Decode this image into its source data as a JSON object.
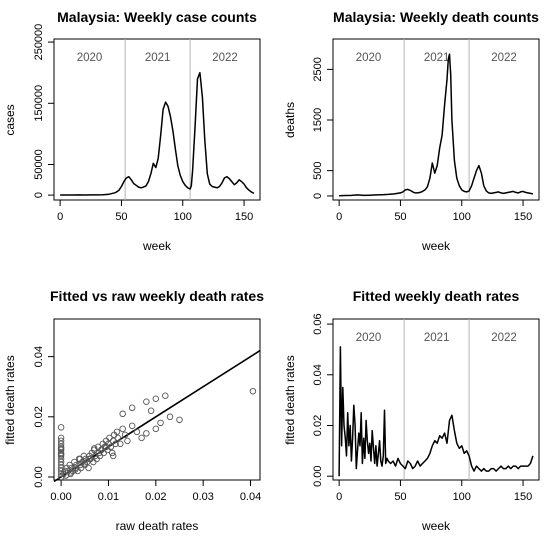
{
  "figure": {
    "background": "#ffffff",
    "line_color": "#000000",
    "divider_color": "#b4b4b4",
    "point_color": "#555555"
  },
  "chart_data": [
    {
      "type": "line",
      "title": "Malaysia: Weekly case counts",
      "xlabel": "week",
      "ylabel": "cases",
      "xlim": [
        -5,
        163
      ],
      "ylim": [
        -8000,
        255000
      ],
      "xticks": [
        "0",
        "50",
        "100",
        "150"
      ],
      "yticks": [
        "0",
        "50000",
        "150000",
        "250000"
      ],
      "year_dividers": [
        53,
        106
      ],
      "year_labels": [
        "2020",
        "2021",
        "2022"
      ],
      "series": [
        {
          "x": [
            0,
            5,
            10,
            15,
            20,
            25,
            30,
            35,
            40,
            45,
            48,
            50,
            52,
            54,
            56,
            58,
            60,
            62,
            64,
            66,
            68,
            70,
            72,
            74,
            76,
            78,
            80,
            82,
            84,
            86,
            88,
            90,
            92,
            94,
            96,
            98,
            100,
            102,
            104,
            106,
            107,
            108,
            110,
            112,
            114,
            116,
            118,
            120,
            122,
            124,
            126,
            128,
            130,
            132,
            134,
            136,
            138,
            140,
            142,
            144,
            146,
            148,
            150,
            152,
            154,
            156,
            158
          ],
          "y": [
            100,
            120,
            150,
            300,
            150,
            400,
            300,
            600,
            1500,
            4000,
            8000,
            14000,
            22000,
            28000,
            30000,
            25000,
            19000,
            16000,
            13000,
            12000,
            13000,
            15000,
            22000,
            35000,
            52000,
            45000,
            60000,
            98000,
            140000,
            152000,
            145000,
            128000,
            105000,
            75000,
            48000,
            32000,
            22000,
            16000,
            12000,
            10000,
            15000,
            40000,
            110000,
            190000,
            200000,
            160000,
            90000,
            35000,
            18000,
            14000,
            13000,
            12000,
            14000,
            20000,
            28000,
            30000,
            27000,
            22000,
            17000,
            20000,
            25000,
            22000,
            18000,
            12000,
            8000,
            5000,
            3000
          ]
        }
      ]
    },
    {
      "type": "line",
      "title": "Malaysia: Weekly death counts",
      "xlabel": "week",
      "ylabel": "deaths",
      "xlim": [
        -5,
        163
      ],
      "ylim": [
        -80,
        3100
      ],
      "xticks": [
        "0",
        "50",
        "100",
        "150"
      ],
      "yticks": [
        "0",
        "500",
        "1500",
        "2500"
      ],
      "year_dividers": [
        53,
        106
      ],
      "year_labels": [
        "2020",
        "2021",
        "2022"
      ],
      "series": [
        {
          "x": [
            0,
            5,
            10,
            15,
            20,
            25,
            30,
            35,
            40,
            45,
            50,
            52,
            54,
            56,
            58,
            60,
            62,
            64,
            66,
            68,
            70,
            72,
            74,
            76,
            78,
            80,
            82,
            84,
            86,
            88,
            89,
            90,
            91,
            92,
            94,
            96,
            98,
            100,
            102,
            104,
            106,
            108,
            110,
            112,
            114,
            116,
            118,
            120,
            122,
            124,
            126,
            128,
            130,
            132,
            134,
            136,
            138,
            140,
            142,
            144,
            146,
            148,
            150,
            152,
            154,
            156,
            158
          ],
          "y": [
            5,
            8,
            10,
            20,
            10,
            15,
            20,
            25,
            30,
            40,
            60,
            80,
            120,
            130,
            110,
            80,
            60,
            60,
            70,
            90,
            120,
            180,
            350,
            650,
            450,
            600,
            950,
            1200,
            1800,
            2300,
            2700,
            2800,
            2400,
            1500,
            700,
            350,
            200,
            120,
            90,
            80,
            100,
            200,
            350,
            500,
            600,
            450,
            200,
            100,
            60,
            50,
            60,
            70,
            80,
            60,
            50,
            60,
            70,
            80,
            90,
            70,
            60,
            80,
            90,
            70,
            60,
            50,
            40
          ]
        }
      ]
    },
    {
      "type": "scatter",
      "title": "Fitted vs raw weekly death rates",
      "xlabel": "raw death rates",
      "ylabel": "fitted death rates",
      "xlim": [
        -0.0015,
        0.042
      ],
      "ylim": [
        -0.001,
        0.0525
      ],
      "xticks": [
        "0.00",
        "0.01",
        "0.02",
        "0.03",
        "0.04"
      ],
      "yticks": [
        "0.00",
        "0.02",
        "0.04"
      ],
      "reference_line": {
        "x": [
          -0.0015,
          0.042
        ],
        "y": [
          -0.0015,
          0.042
        ]
      },
      "series": [
        {
          "x": [
            0.0,
            0.0,
            0.0,
            0.0,
            0.0,
            0.0,
            0.0,
            0.0,
            0.0,
            0.0,
            0.0,
            0.0,
            0.0,
            0.0,
            0.0,
            0.0005,
            0.0008,
            0.001,
            0.0012,
            0.0015,
            0.0018,
            0.002,
            0.0022,
            0.0025,
            0.0028,
            0.003,
            0.0032,
            0.0035,
            0.0038,
            0.004,
            0.0042,
            0.0045,
            0.0048,
            0.005,
            0.0052,
            0.0055,
            0.0058,
            0.006,
            0.0062,
            0.0065,
            0.0068,
            0.007,
            0.0072,
            0.0075,
            0.0078,
            0.008,
            0.0082,
            0.0085,
            0.0088,
            0.009,
            0.0092,
            0.0095,
            0.0098,
            0.01,
            0.0102,
            0.0105,
            0.0108,
            0.011,
            0.0112,
            0.0115,
            0.0118,
            0.012,
            0.0125,
            0.013,
            0.0135,
            0.014,
            0.015,
            0.016,
            0.017,
            0.018,
            0.019,
            0.02,
            0.021,
            0.022,
            0.023,
            0.025,
            0.0405,
            0.013,
            0.018,
            0.02,
            0.015,
            0.011,
            0.0095,
            0.0085,
            0.007,
            0.006,
            0.005,
            0.004,
            0.003,
            0.002,
            0.001,
            0.0,
            0.0
          ],
          "y": [
            0.0,
            0.001,
            0.002,
            0.003,
            0.004,
            0.005,
            0.006,
            0.007,
            0.008,
            0.009,
            0.01,
            0.011,
            0.012,
            0.013,
            0.0165,
            0.001,
            0.002,
            0.0005,
            0.003,
            0.002,
            0.004,
            0.001,
            0.003,
            0.002,
            0.005,
            0.003,
            0.004,
            0.002,
            0.006,
            0.004,
            0.003,
            0.005,
            0.007,
            0.004,
            0.006,
            0.005,
            0.003,
            0.007,
            0.006,
            0.008,
            0.005,
            0.009,
            0.007,
            0.006,
            0.01,
            0.008,
            0.007,
            0.009,
            0.011,
            0.008,
            0.01,
            0.012,
            0.009,
            0.011,
            0.013,
            0.01,
            0.008,
            0.012,
            0.014,
            0.011,
            0.015,
            0.013,
            0.011,
            0.016,
            0.014,
            0.012,
            0.017,
            0.015,
            0.013,
            0.025,
            0.022,
            0.026,
            0.018,
            0.027,
            0.02,
            0.019,
            0.0285,
            0.021,
            0.0145,
            0.016,
            0.023,
            0.007,
            0.01,
            0.009,
            0.0095,
            0.006,
            0.0045,
            0.006,
            0.0025,
            0.0015,
            0.0005,
            0.0095,
            0.0075
          ]
        }
      ]
    },
    {
      "type": "line",
      "title": "Fitted weekly death rates",
      "xlabel": "week",
      "ylabel": "fitted death rates",
      "xlim": [
        -5,
        163
      ],
      "ylim": [
        -0.0015,
        0.062
      ],
      "xticks": [
        "0",
        "50",
        "100",
        "150"
      ],
      "yticks": [
        "0.00",
        "0.02",
        "0.04",
        "0.06"
      ],
      "year_dividers": [
        53,
        106
      ],
      "year_labels": [
        "2020",
        "2021",
        "2022"
      ],
      "series": [
        {
          "x": [
            0,
            1,
            2,
            3,
            4,
            5,
            6,
            7,
            8,
            9,
            10,
            11,
            12,
            13,
            14,
            15,
            16,
            17,
            18,
            19,
            20,
            21,
            22,
            23,
            24,
            25,
            26,
            27,
            28,
            29,
            30,
            31,
            32,
            33,
            34,
            35,
            36,
            37,
            38,
            39,
            40,
            42,
            44,
            46,
            48,
            50,
            52,
            54,
            56,
            58,
            60,
            62,
            64,
            66,
            68,
            70,
            72,
            74,
            76,
            78,
            80,
            82,
            84,
            86,
            88,
            90,
            92,
            94,
            96,
            98,
            100,
            102,
            104,
            106,
            108,
            110,
            112,
            114,
            116,
            118,
            120,
            122,
            124,
            126,
            128,
            130,
            132,
            134,
            136,
            138,
            140,
            142,
            144,
            146,
            148,
            150,
            152,
            154,
            156,
            158
          ],
          "y": [
            0.0,
            0.051,
            0.012,
            0.035,
            0.02,
            0.015,
            0.008,
            0.025,
            0.012,
            0.02,
            0.006,
            0.015,
            0.028,
            0.02,
            0.003,
            0.01,
            0.017,
            0.012,
            0.025,
            0.005,
            0.015,
            0.007,
            0.022,
            0.014,
            0.009,
            0.013,
            0.006,
            0.018,
            0.011,
            0.005,
            0.012,
            0.004,
            0.009,
            0.014,
            0.006,
            0.004,
            0.008,
            0.026,
            0.005,
            0.007,
            0.006,
            0.005,
            0.006,
            0.004,
            0.007,
            0.005,
            0.004,
            0.003,
            0.006,
            0.005,
            0.003,
            0.004,
            0.006,
            0.004,
            0.005,
            0.006,
            0.007,
            0.009,
            0.012,
            0.014,
            0.013,
            0.016,
            0.015,
            0.017,
            0.013,
            0.022,
            0.024,
            0.018,
            0.013,
            0.011,
            0.012,
            0.009,
            0.01,
            0.008,
            0.004,
            0.002,
            0.004,
            0.003,
            0.002,
            0.003,
            0.002,
            0.002,
            0.003,
            0.003,
            0.002,
            0.003,
            0.004,
            0.003,
            0.003,
            0.004,
            0.003,
            0.004,
            0.004,
            0.003,
            0.004,
            0.004,
            0.004,
            0.004,
            0.005,
            0.008
          ]
        }
      ]
    }
  ]
}
